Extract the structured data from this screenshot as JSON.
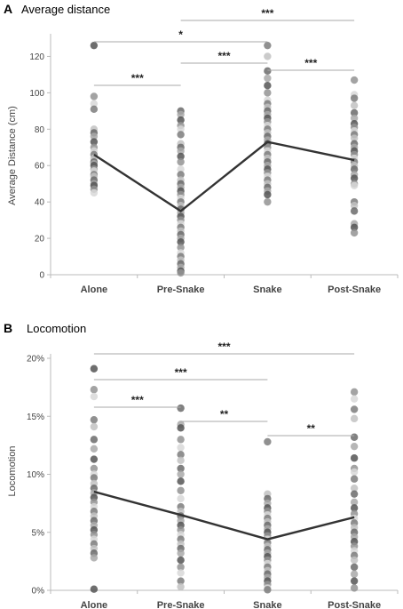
{
  "chart_data": [
    {
      "type": "scatter",
      "panel": "A",
      "title": "Average distance",
      "ylabel": "Average Distance (cm)",
      "xlabel": "",
      "categories": [
        "Alone",
        "Pre-Snake",
        "Snake",
        "Post-Snake"
      ],
      "ylim": [
        0,
        130
      ],
      "yticks": [
        "0",
        "20",
        "40",
        "60",
        "80",
        "100",
        "120"
      ],
      "ytick_values": [
        0,
        20,
        40,
        60,
        80,
        100,
        120
      ],
      "points": [
        [
          126,
          98,
          94,
          91,
          80,
          78,
          76,
          73,
          70,
          68,
          66,
          64,
          62,
          61,
          60,
          58,
          57,
          55,
          54,
          52,
          50,
          49,
          47,
          45
        ],
        [
          90,
          88,
          85,
          82,
          80,
          77,
          72,
          70,
          68,
          65,
          62,
          58,
          55,
          52,
          50,
          48,
          46,
          44,
          42,
          40,
          38,
          36,
          34,
          32,
          30,
          28,
          26,
          24,
          22,
          20,
          18,
          15,
          12,
          10,
          8,
          6,
          4,
          2,
          1
        ],
        [
          126,
          120,
          112,
          108,
          104,
          100,
          96,
          94,
          92,
          90,
          88,
          86,
          84,
          82,
          80,
          78,
          76,
          74,
          72,
          70,
          68,
          66,
          64,
          62,
          60,
          58,
          56,
          54,
          52,
          50,
          48,
          46,
          44,
          40
        ],
        [
          107,
          99,
          97,
          93,
          89,
          86,
          83,
          81,
          79,
          77,
          75,
          72,
          70,
          68,
          66,
          64,
          62,
          60,
          58,
          55,
          53,
          50,
          49,
          40,
          38,
          35,
          28,
          26,
          23
        ]
      ],
      "means": [
        66,
        35,
        73,
        63
      ],
      "annotations": [
        {
          "from": "Pre-Snake",
          "to": "Post-Snake",
          "label": "***"
        },
        {
          "from": "Alone",
          "to": "Snake",
          "label": "*"
        },
        {
          "from": "Pre-Snake",
          "to": "Snake",
          "label": "***"
        },
        {
          "from": "Alone",
          "to": "Pre-Snake",
          "label": "***"
        },
        {
          "from": "Snake",
          "to": "Post-Snake",
          "label": "***"
        }
      ]
    },
    {
      "type": "scatter",
      "panel": "B",
      "title": "Locomotion",
      "ylabel": "Locomotion",
      "xlabel": "",
      "categories": [
        "Alone",
        "Pre-Snake",
        "Snake",
        "Post-Snake"
      ],
      "ylim": [
        0,
        20
      ],
      "yticks": [
        "0%",
        "5%",
        "10%",
        "15%",
        "20%"
      ],
      "ytick_values": [
        0,
        5,
        10,
        15,
        20
      ],
      "points": [
        [
          19.1,
          17.3,
          16.7,
          14.7,
          14.1,
          13.0,
          12.2,
          11.3,
          10.5,
          10.0,
          9.7,
          9.2,
          8.8,
          8.4,
          8.0,
          7.6,
          7.2,
          6.8,
          6.4,
          6.0,
          5.6,
          5.2,
          4.8,
          4.4,
          4.0,
          3.6,
          3.2,
          2.8,
          0.1
        ],
        [
          15.7,
          14.3,
          14.0,
          13.0,
          12.3,
          11.7,
          11.2,
          10.5,
          10.0,
          9.4,
          8.6,
          7.9,
          7.2,
          6.8,
          6.4,
          6.0,
          5.6,
          5.2,
          4.8,
          4.4,
          4.0,
          3.6,
          3.2,
          2.6,
          2.0,
          1.5,
          0.8,
          0.3
        ],
        [
          12.8,
          8.3,
          7.9,
          7.5,
          7.1,
          6.8,
          6.5,
          6.2,
          5.9,
          5.6,
          5.3,
          5.0,
          4.7,
          4.4,
          4.1,
          3.8,
          3.5,
          3.2,
          2.9,
          2.6,
          2.3,
          2.0,
          1.7,
          1.4,
          1.1,
          0.8,
          0.5,
          0.2,
          0.05
        ],
        [
          17.1,
          16.5,
          15.6,
          14.8,
          13.2,
          12.4,
          11.4,
          10.5,
          10.2,
          9.6,
          8.8,
          8.3,
          7.6,
          7.1,
          6.6,
          6.2,
          5.8,
          5.4,
          5.0,
          4.6,
          4.2,
          3.8,
          3.4,
          3.0,
          2.6,
          2.0,
          1.4,
          0.8,
          0.2
        ]
      ],
      "means": [
        8.5,
        6.5,
        4.4,
        6.3
      ],
      "annotations": [
        {
          "from": "Alone",
          "to": "Post-Snake",
          "label": "***"
        },
        {
          "from": "Alone",
          "to": "Snake",
          "label": "***"
        },
        {
          "from": "Alone",
          "to": "Pre-Snake",
          "label": "***"
        },
        {
          "from": "Pre-Snake",
          "to": "Snake",
          "label": "**"
        },
        {
          "from": "Snake",
          "to": "Post-Snake",
          "label": "**"
        }
      ]
    }
  ]
}
